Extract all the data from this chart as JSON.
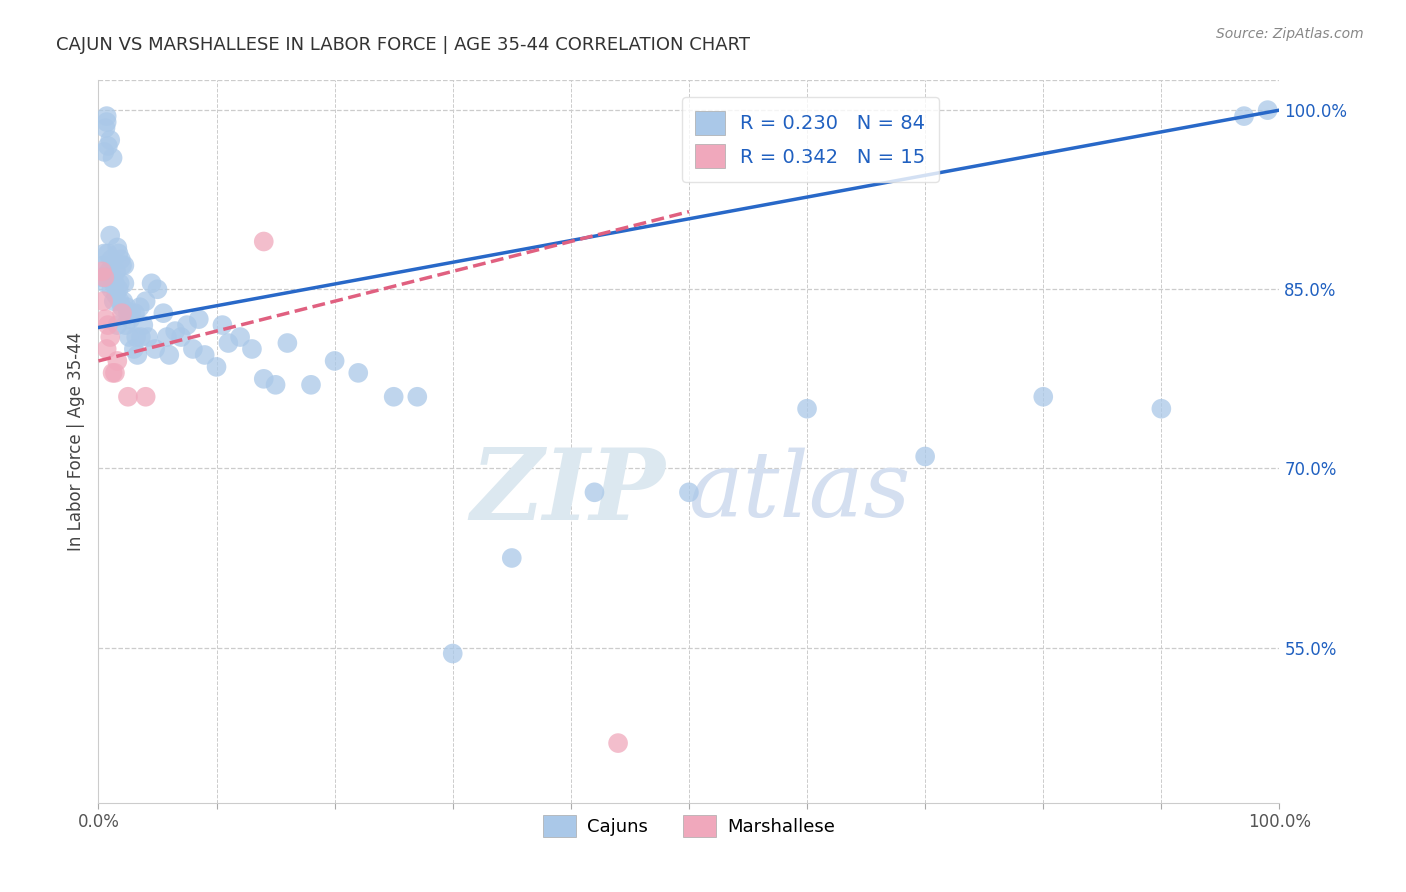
{
  "title": "CAJUN VS MARSHALLESE IN LABOR FORCE | AGE 35-44 CORRELATION CHART",
  "source": "Source: ZipAtlas.com",
  "ylabel": "In Labor Force | Age 35-44",
  "xlim": [
    0.0,
    1.0
  ],
  "ylim": [
    0.42,
    1.025
  ],
  "y_tick_positions": [
    0.55,
    0.7,
    0.85,
    1.0
  ],
  "y_tick_labels": [
    "55.0%",
    "70.0%",
    "85.0%",
    "100.0%"
  ],
  "cajun_color": "#aac8e8",
  "marshallese_color": "#f0a8bc",
  "cajun_line_color": "#2868c8",
  "marshallese_line_color": "#e06080",
  "cajun_R": 0.23,
  "cajun_N": 84,
  "marshallese_R": 0.342,
  "marshallese_N": 15,
  "legend_label_cajun": "Cajuns",
  "legend_label_marshallese": "Marshallese",
  "background_color": "#ffffff",
  "grid_color": "#cccccc",
  "cajun_line_x0": 0.0,
  "cajun_line_y0": 0.818,
  "cajun_line_x1": 1.0,
  "cajun_line_y1": 1.0,
  "marsh_line_x0": 0.0,
  "marsh_line_y0": 0.79,
  "marsh_line_x1": 0.5,
  "marsh_line_y1": 0.915,
  "cajun_x": [
    0.003,
    0.004,
    0.005,
    0.005,
    0.006,
    0.006,
    0.007,
    0.007,
    0.008,
    0.008,
    0.009,
    0.01,
    0.01,
    0.011,
    0.011,
    0.012,
    0.012,
    0.013,
    0.013,
    0.014,
    0.015,
    0.015,
    0.016,
    0.016,
    0.017,
    0.017,
    0.018,
    0.018,
    0.019,
    0.02,
    0.02,
    0.021,
    0.022,
    0.022,
    0.023,
    0.024,
    0.025,
    0.026,
    0.027,
    0.028,
    0.03,
    0.031,
    0.032,
    0.033,
    0.035,
    0.036,
    0.038,
    0.04,
    0.042,
    0.045,
    0.048,
    0.05,
    0.055,
    0.058,
    0.06,
    0.065,
    0.07,
    0.075,
    0.08,
    0.085,
    0.09,
    0.1,
    0.105,
    0.11,
    0.12,
    0.13,
    0.14,
    0.15,
    0.16,
    0.18,
    0.2,
    0.22,
    0.25,
    0.27,
    0.3,
    0.35,
    0.42,
    0.5,
    0.6,
    0.7,
    0.8,
    0.9,
    0.97,
    0.99
  ],
  "cajun_y": [
    0.86,
    0.87,
    0.88,
    0.965,
    0.855,
    0.985,
    0.99,
    0.995,
    0.88,
    0.97,
    0.865,
    0.895,
    0.975,
    0.875,
    0.85,
    0.86,
    0.96,
    0.84,
    0.855,
    0.855,
    0.845,
    0.865,
    0.885,
    0.82,
    0.88,
    0.85,
    0.84,
    0.855,
    0.875,
    0.87,
    0.835,
    0.84,
    0.855,
    0.87,
    0.82,
    0.835,
    0.83,
    0.81,
    0.825,
    0.83,
    0.8,
    0.83,
    0.81,
    0.795,
    0.835,
    0.81,
    0.82,
    0.84,
    0.81,
    0.855,
    0.8,
    0.85,
    0.83,
    0.81,
    0.795,
    0.815,
    0.81,
    0.82,
    0.8,
    0.825,
    0.795,
    0.785,
    0.82,
    0.805,
    0.81,
    0.8,
    0.775,
    0.77,
    0.805,
    0.77,
    0.79,
    0.78,
    0.76,
    0.76,
    0.545,
    0.625,
    0.68,
    0.68,
    0.75,
    0.71,
    0.76,
    0.75,
    0.995,
    1.0
  ],
  "marsh_x": [
    0.003,
    0.004,
    0.005,
    0.006,
    0.007,
    0.008,
    0.01,
    0.012,
    0.014,
    0.016,
    0.02,
    0.025,
    0.04,
    0.14,
    0.44
  ],
  "marsh_y": [
    0.865,
    0.84,
    0.86,
    0.825,
    0.8,
    0.82,
    0.81,
    0.78,
    0.78,
    0.79,
    0.83,
    0.76,
    0.76,
    0.89,
    0.47
  ]
}
